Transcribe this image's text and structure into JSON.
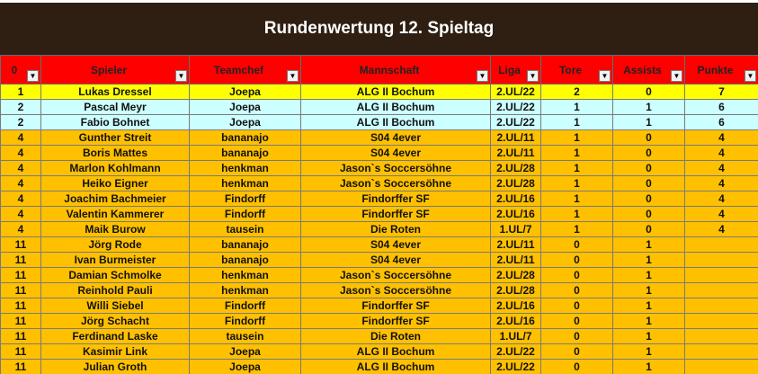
{
  "title": "Rundenwertung 12. Spieltag",
  "headers": [
    "0",
    "Spieler",
    "Teamchef",
    "Mannschaft",
    "Liga",
    "Tore",
    "Assists",
    "Punkte"
  ],
  "colors": {
    "title_bg": "#2e1f12",
    "header_bg": "#ff0000",
    "row_first": "#ffff00",
    "row_second": "#ccffff",
    "row_rest": "#ffc000"
  },
  "icons": {
    "filter_dropdown": "dropdown-arrow-icon"
  },
  "rows": [
    {
      "style": "yellow",
      "rank": "1",
      "spieler": "Lukas Dressel",
      "teamchef": "Joepa",
      "mannschaft": "ALG II Bochum",
      "liga": "2.UL/22",
      "tore": "2",
      "assists": "0",
      "punkte": "7"
    },
    {
      "style": "cyan",
      "rank": "2",
      "spieler": "Pascal Meyr",
      "teamchef": "Joepa",
      "mannschaft": "ALG II Bochum",
      "liga": "2.UL/22",
      "tore": "1",
      "assists": "1",
      "punkte": "6"
    },
    {
      "style": "cyan",
      "rank": "2",
      "spieler": "Fabio Bohnet",
      "teamchef": "Joepa",
      "mannschaft": "ALG II Bochum",
      "liga": "2.UL/22",
      "tore": "1",
      "assists": "1",
      "punkte": "6"
    },
    {
      "style": "orange",
      "rank": "4",
      "spieler": "Gunther Streit",
      "teamchef": "bananajo",
      "mannschaft": "S04 4ever",
      "liga": "2.UL/11",
      "tore": "1",
      "assists": "0",
      "punkte": "4"
    },
    {
      "style": "orange",
      "rank": "4",
      "spieler": "Boris Mattes",
      "teamchef": "bananajo",
      "mannschaft": "S04 4ever",
      "liga": "2.UL/11",
      "tore": "1",
      "assists": "0",
      "punkte": "4"
    },
    {
      "style": "orange",
      "rank": "4",
      "spieler": "Marlon Kohlmann",
      "teamchef": "henkman",
      "mannschaft": "Jason`s Soccersöhne",
      "liga": "2.UL/28",
      "tore": "1",
      "assists": "0",
      "punkte": "4"
    },
    {
      "style": "orange",
      "rank": "4",
      "spieler": "Heiko Eigner",
      "teamchef": "henkman",
      "mannschaft": "Jason`s Soccersöhne",
      "liga": "2.UL/28",
      "tore": "1",
      "assists": "0",
      "punkte": "4"
    },
    {
      "style": "orange",
      "rank": "4",
      "spieler": "Joachim Bachmeier",
      "teamchef": "Findorff",
      "mannschaft": "Findorffer SF",
      "liga": "2.UL/16",
      "tore": "1",
      "assists": "0",
      "punkte": "4"
    },
    {
      "style": "orange",
      "rank": "4",
      "spieler": "Valentin Kammerer",
      "teamchef": "Findorff",
      "mannschaft": "Findorffer SF",
      "liga": "2.UL/16",
      "tore": "1",
      "assists": "0",
      "punkte": "4"
    },
    {
      "style": "orange",
      "rank": "4",
      "spieler": "Maik Burow",
      "teamchef": "tausein",
      "mannschaft": "Die Roten",
      "liga": "1.UL/7",
      "tore": "1",
      "assists": "0",
      "punkte": "4"
    },
    {
      "style": "orange",
      "rank": "11",
      "spieler": "Jörg Rode",
      "teamchef": "bananajo",
      "mannschaft": "S04 4ever",
      "liga": "2.UL/11",
      "tore": "0",
      "assists": "1",
      "punkte": ""
    },
    {
      "style": "orange",
      "rank": "11",
      "spieler": "Ivan Burmeister",
      "teamchef": "bananajo",
      "mannschaft": "S04 4ever",
      "liga": "2.UL/11",
      "tore": "0",
      "assists": "1",
      "punkte": ""
    },
    {
      "style": "orange",
      "rank": "11",
      "spieler": "Damian Schmolke",
      "teamchef": "henkman",
      "mannschaft": "Jason`s Soccersöhne",
      "liga": "2.UL/28",
      "tore": "0",
      "assists": "1",
      "punkte": ""
    },
    {
      "style": "orange",
      "rank": "11",
      "spieler": "Reinhold Pauli",
      "teamchef": "henkman",
      "mannschaft": "Jason`s Soccersöhne",
      "liga": "2.UL/28",
      "tore": "0",
      "assists": "1",
      "punkte": ""
    },
    {
      "style": "orange",
      "rank": "11",
      "spieler": "Willi Siebel",
      "teamchef": "Findorff",
      "mannschaft": "Findorffer SF",
      "liga": "2.UL/16",
      "tore": "0",
      "assists": "1",
      "punkte": ""
    },
    {
      "style": "orange",
      "rank": "11",
      "spieler": "Jörg Schacht",
      "teamchef": "Findorff",
      "mannschaft": "Findorffer SF",
      "liga": "2.UL/16",
      "tore": "0",
      "assists": "1",
      "punkte": ""
    },
    {
      "style": "orange",
      "rank": "11",
      "spieler": "Ferdinand Laske",
      "teamchef": "tausein",
      "mannschaft": "Die Roten",
      "liga": "1.UL/7",
      "tore": "0",
      "assists": "1",
      "punkte": ""
    },
    {
      "style": "orange",
      "rank": "11",
      "spieler": "Kasimir Link",
      "teamchef": "Joepa",
      "mannschaft": "ALG II Bochum",
      "liga": "2.UL/22",
      "tore": "0",
      "assists": "1",
      "punkte": ""
    },
    {
      "style": "orange",
      "rank": "11",
      "spieler": "Julian Groth",
      "teamchef": "Joepa",
      "mannschaft": "ALG II Bochum",
      "liga": "2.UL/22",
      "tore": "0",
      "assists": "1",
      "punkte": ""
    }
  ]
}
